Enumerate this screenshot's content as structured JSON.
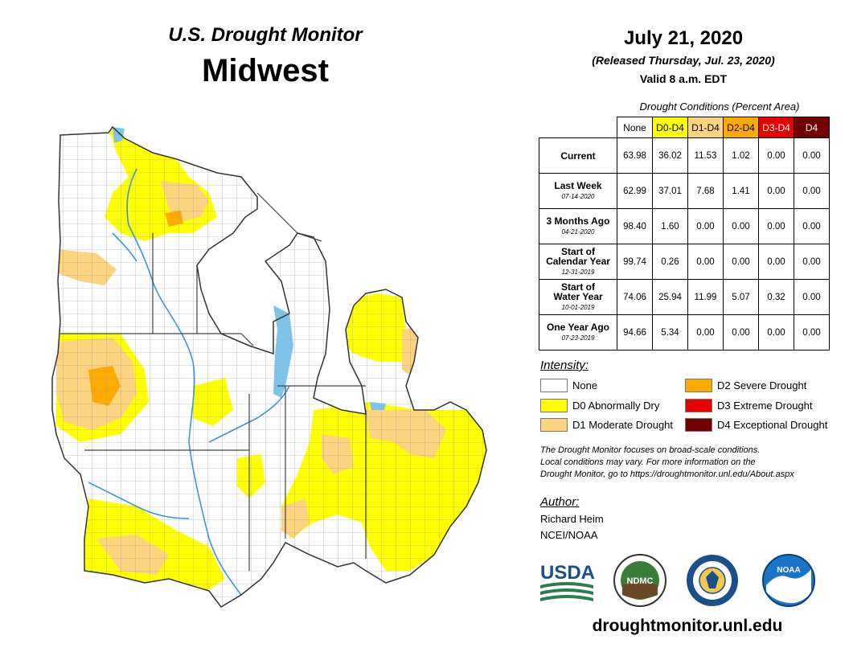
{
  "header": {
    "subtitle": "U.S. Drought Monitor",
    "region": "Midwest"
  },
  "info": {
    "date": "July 21, 2020",
    "released": "(Released Thursday, Jul. 23, 2020)",
    "valid": "Valid 8 a.m. EDT"
  },
  "table": {
    "caption": "Drought Conditions (Percent Area)",
    "columns": [
      {
        "label": "None",
        "color": "#ffffff",
        "text_color": "#000000"
      },
      {
        "label": "D0-D4",
        "color": "#ffff00",
        "text_color": "#000000"
      },
      {
        "label": "D1-D4",
        "color": "#fcd37f",
        "text_color": "#000000"
      },
      {
        "label": "D2-D4",
        "color": "#ffaa00",
        "text_color": "#000000"
      },
      {
        "label": "D3-D4",
        "color": "#e60000",
        "text_color": "#ffffff"
      },
      {
        "label": "D4",
        "color": "#730000",
        "text_color": "#ffffff"
      }
    ],
    "rows": [
      {
        "label_lines": [
          "Current"
        ],
        "date": "",
        "values": [
          "63.98",
          "36.02",
          "11.53",
          "1.02",
          "0.00",
          "0.00"
        ]
      },
      {
        "label_lines": [
          "Last Week"
        ],
        "date": "07-14-2020",
        "values": [
          "62.99",
          "37.01",
          "7.68",
          "1.41",
          "0.00",
          "0.00"
        ]
      },
      {
        "label_lines": [
          "3 Months Ago"
        ],
        "date": "04-21-2020",
        "values": [
          "98.40",
          "1.60",
          "0.00",
          "0.00",
          "0.00",
          "0.00"
        ]
      },
      {
        "label_lines": [
          "Start of",
          "Calendar Year"
        ],
        "date": "12-31-2019",
        "values": [
          "99.74",
          "0.26",
          "0.00",
          "0.00",
          "0.00",
          "0.00"
        ]
      },
      {
        "label_lines": [
          "Start of",
          "Water Year"
        ],
        "date": "10-01-2019",
        "values": [
          "74.06",
          "25.94",
          "11.99",
          "5.07",
          "0.32",
          "0.00"
        ]
      },
      {
        "label_lines": [
          "One Year Ago"
        ],
        "date": "07-23-2019",
        "values": [
          "94.66",
          "5.34",
          "0.00",
          "0.00",
          "0.00",
          "0.00"
        ]
      }
    ]
  },
  "legend": {
    "title": "Intensity:",
    "items": [
      {
        "label": "None",
        "color": "#ffffff"
      },
      {
        "label": "D0 Abnormally Dry",
        "color": "#ffff00"
      },
      {
        "label": "D1 Moderate Drought",
        "color": "#fcd37f"
      },
      {
        "label": "D2 Severe Drought",
        "color": "#ffaa00"
      },
      {
        "label": "D3 Extreme Drought",
        "color": "#e60000"
      },
      {
        "label": "D4 Exceptional Drought",
        "color": "#730000"
      }
    ]
  },
  "note": {
    "line1": "The Drought Monitor focuses on broad-scale conditions.",
    "line2": "Local conditions may vary. For more information on the",
    "line3": "Drought Monitor, go to https://droughtmonitor.unl.edu/About.aspx"
  },
  "author": {
    "title": "Author:",
    "name": "Richard Heim",
    "org": "NCEI/NOAA"
  },
  "logos": {
    "usda_text": "USDA",
    "ndmc_text": "NDMC",
    "noaa_text": "NOAA"
  },
  "footer": {
    "url": "droughtmonitor.unl.edu"
  },
  "colors": {
    "water": "#7fc4e8",
    "river": "#3a96d6",
    "border": "#555555"
  }
}
